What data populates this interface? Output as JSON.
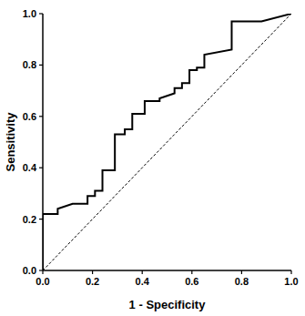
{
  "chart_data": {
    "type": "line",
    "x_label": "1 - Specificity",
    "y_label": "Sensitivity",
    "xlim": [
      0,
      1
    ],
    "ylim": [
      0,
      1
    ],
    "xticks": [
      {
        "value": 0,
        "label": "0.0"
      },
      {
        "value": 0.2,
        "label": "0.2"
      },
      {
        "value": 0.4,
        "label": "0.4"
      },
      {
        "value": 0.6,
        "label": "0.6"
      },
      {
        "value": 0.8,
        "label": "0.8"
      },
      {
        "value": 1,
        "label": "1.0"
      }
    ],
    "yticks": [
      {
        "value": 0,
        "label": "0.0"
      },
      {
        "value": 0.2,
        "label": "0.2"
      },
      {
        "value": 0.4,
        "label": "0.4"
      },
      {
        "value": 0.6,
        "label": "0.6"
      },
      {
        "value": 0.8,
        "label": "0.8"
      },
      {
        "value": 1,
        "label": "1.0"
      }
    ],
    "grid": false,
    "series": [
      {
        "x": [
          0,
          0,
          0.06,
          0.06,
          0.12,
          0.18,
          0.18,
          0.21,
          0.21,
          0.24,
          0.24,
          0.29,
          0.29,
          0.33,
          0.33,
          0.36,
          0.36,
          0.41,
          0.41,
          0.47,
          0.47,
          0.53,
          0.53,
          0.56,
          0.56,
          0.59,
          0.59,
          0.62,
          0.62,
          0.65,
          0.65,
          0.76,
          0.76,
          0.88,
          1.0
        ],
        "values": [
          0,
          0.22,
          0.22,
          0.24,
          0.26,
          0.26,
          0.29,
          0.29,
          0.31,
          0.31,
          0.39,
          0.39,
          0.53,
          0.53,
          0.55,
          0.55,
          0.61,
          0.61,
          0.66,
          0.66,
          0.67,
          0.69,
          0.71,
          0.71,
          0.73,
          0.73,
          0.78,
          0.78,
          0.79,
          0.79,
          0.84,
          0.86,
          0.97,
          0.97,
          1.0
        ],
        "color": "#000000",
        "line_style": "solid"
      },
      {
        "x": [
          0,
          1
        ],
        "values": [
          0,
          1
        ],
        "color": "#000000",
        "line_style": "dashed"
      }
    ]
  }
}
